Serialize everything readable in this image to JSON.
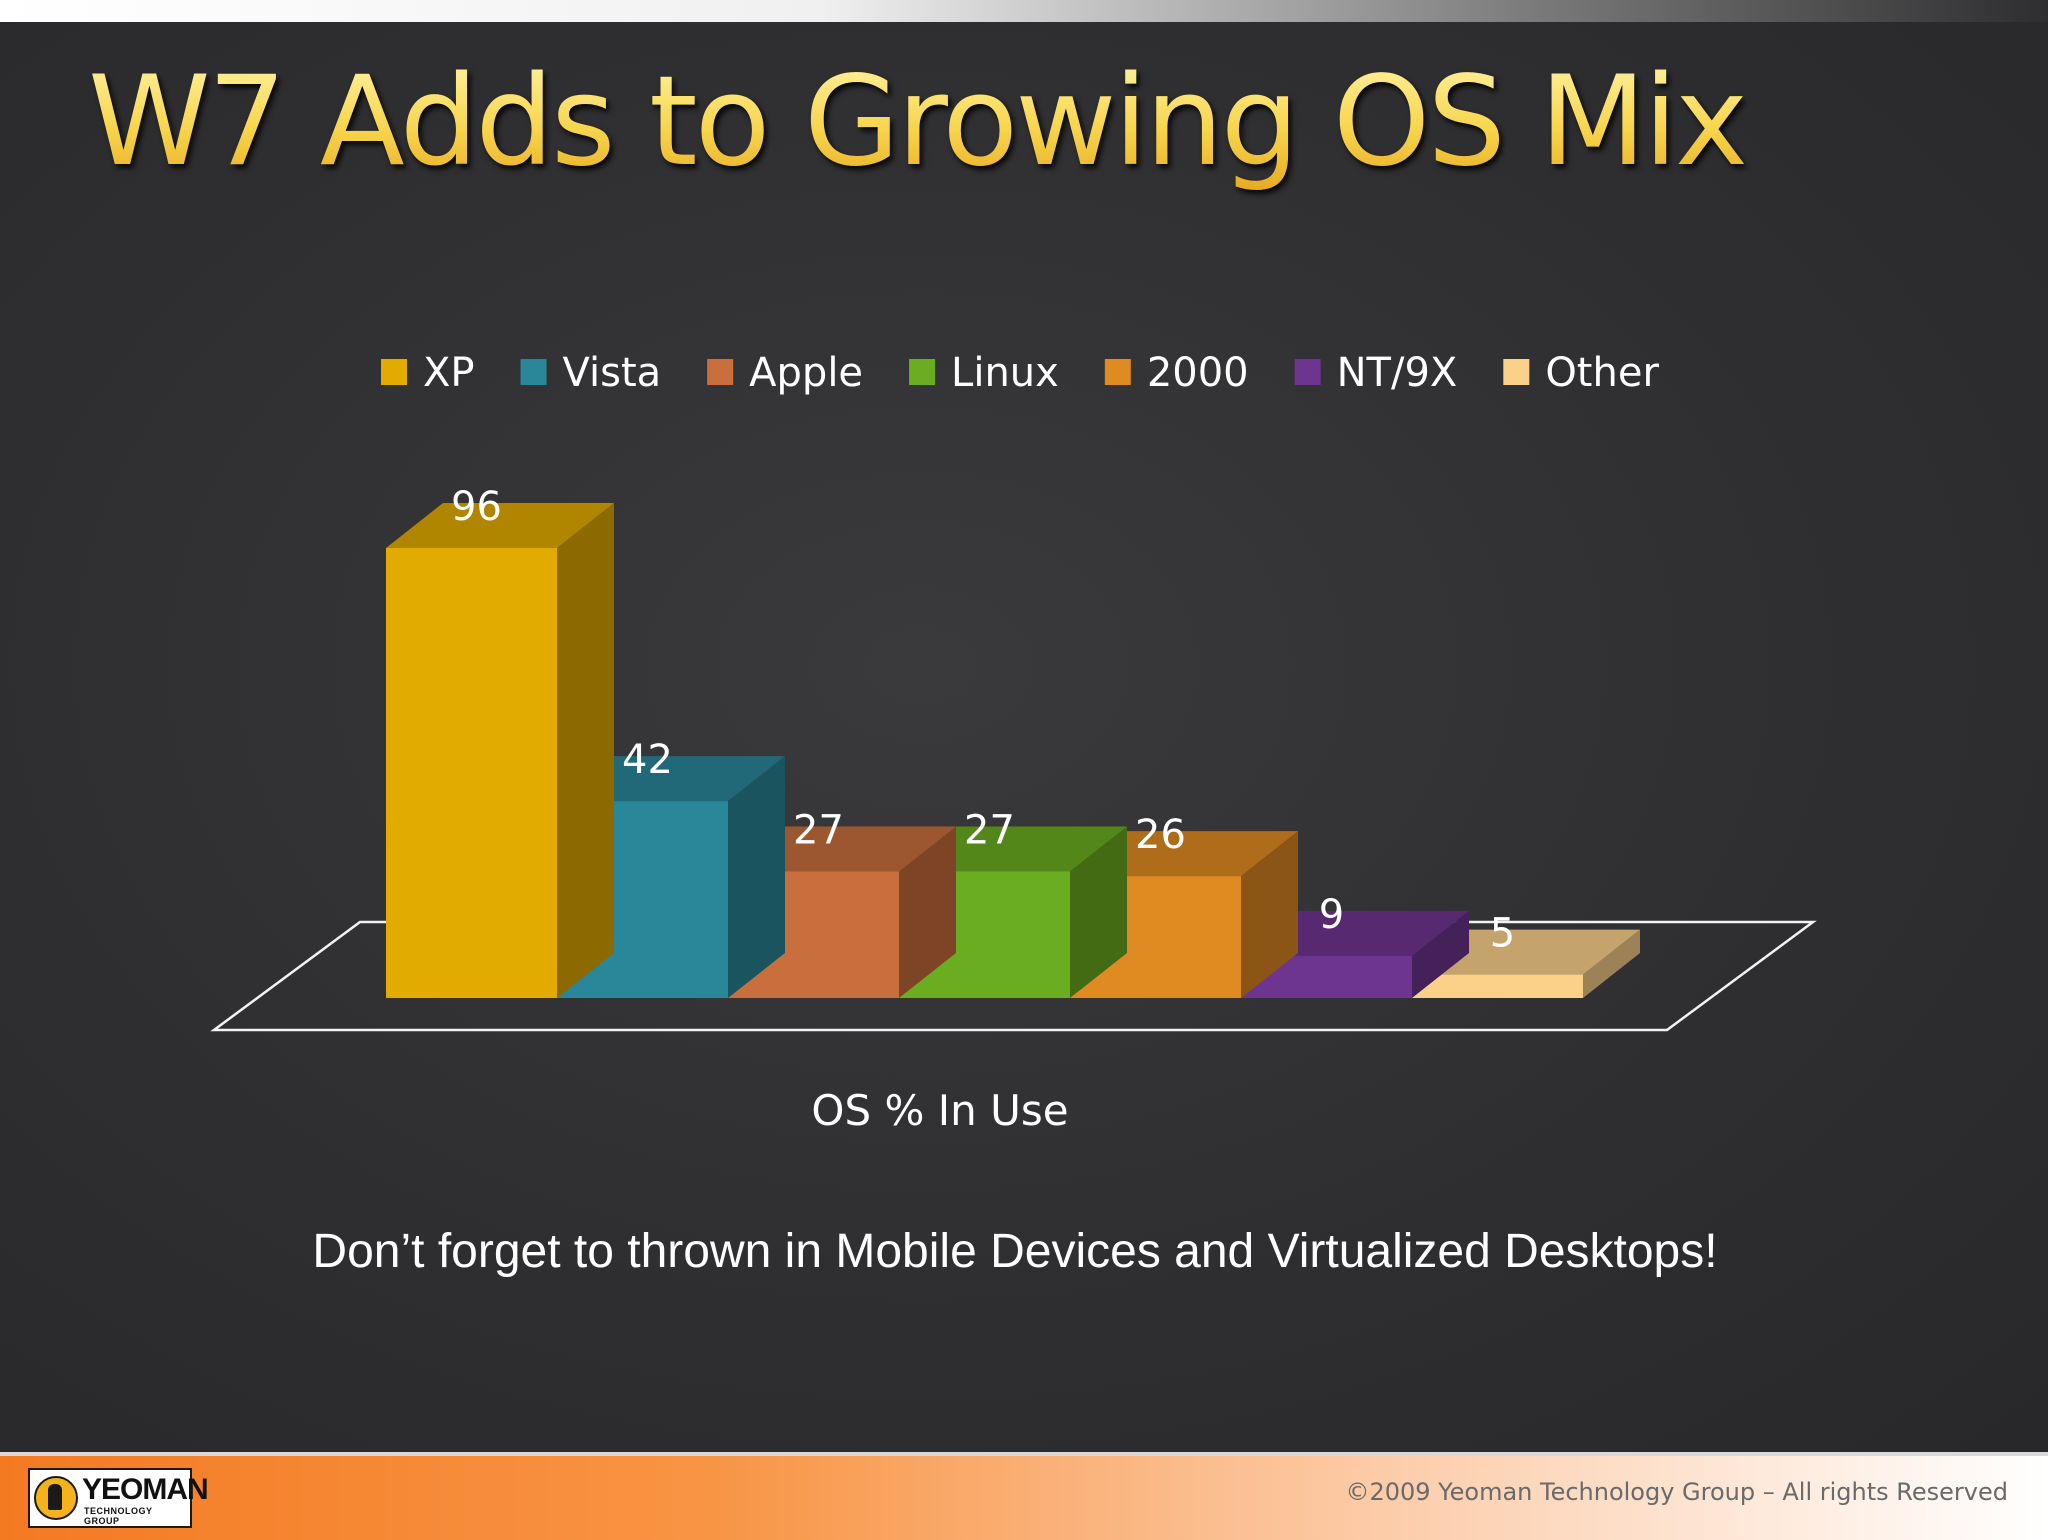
{
  "slide": {
    "title": "W7 Adds to Growing OS Mix",
    "subtitle": "Don’t forget to thrown in Mobile Devices and Virtualized Desktops!"
  },
  "footer": {
    "logo_name": "YEOMAN",
    "logo_tagline": "TECHNOLOGY GROUP",
    "copyright": "©2009 Yeoman Technology Group – All rights Reserved"
  },
  "chart_data": {
    "type": "bar",
    "title": "",
    "xlabel": "OS % In Use",
    "ylabel": "",
    "ylim": [
      0,
      100
    ],
    "grid": false,
    "legend_position": "top",
    "style": "3d-column",
    "series": [
      {
        "name": "XP",
        "value": 96,
        "color": "#e1ab00",
        "label": "96"
      },
      {
        "name": "Vista",
        "value": 42,
        "color": "#2a879a",
        "label": "42"
      },
      {
        "name": "Apple",
        "value": 27,
        "color": "#c96f3d",
        "label": "27"
      },
      {
        "name": "Linux",
        "value": 27,
        "color": "#6aad21",
        "label": "27"
      },
      {
        "name": "2000",
        "value": 26,
        "color": "#e08a22",
        "label": "26"
      },
      {
        "name": "NT/9X",
        "value": 9,
        "color": "#6e3590",
        "label": "9"
      },
      {
        "name": "Other",
        "value": 5,
        "color": "#fbd18a",
        "label": "5"
      }
    ]
  }
}
